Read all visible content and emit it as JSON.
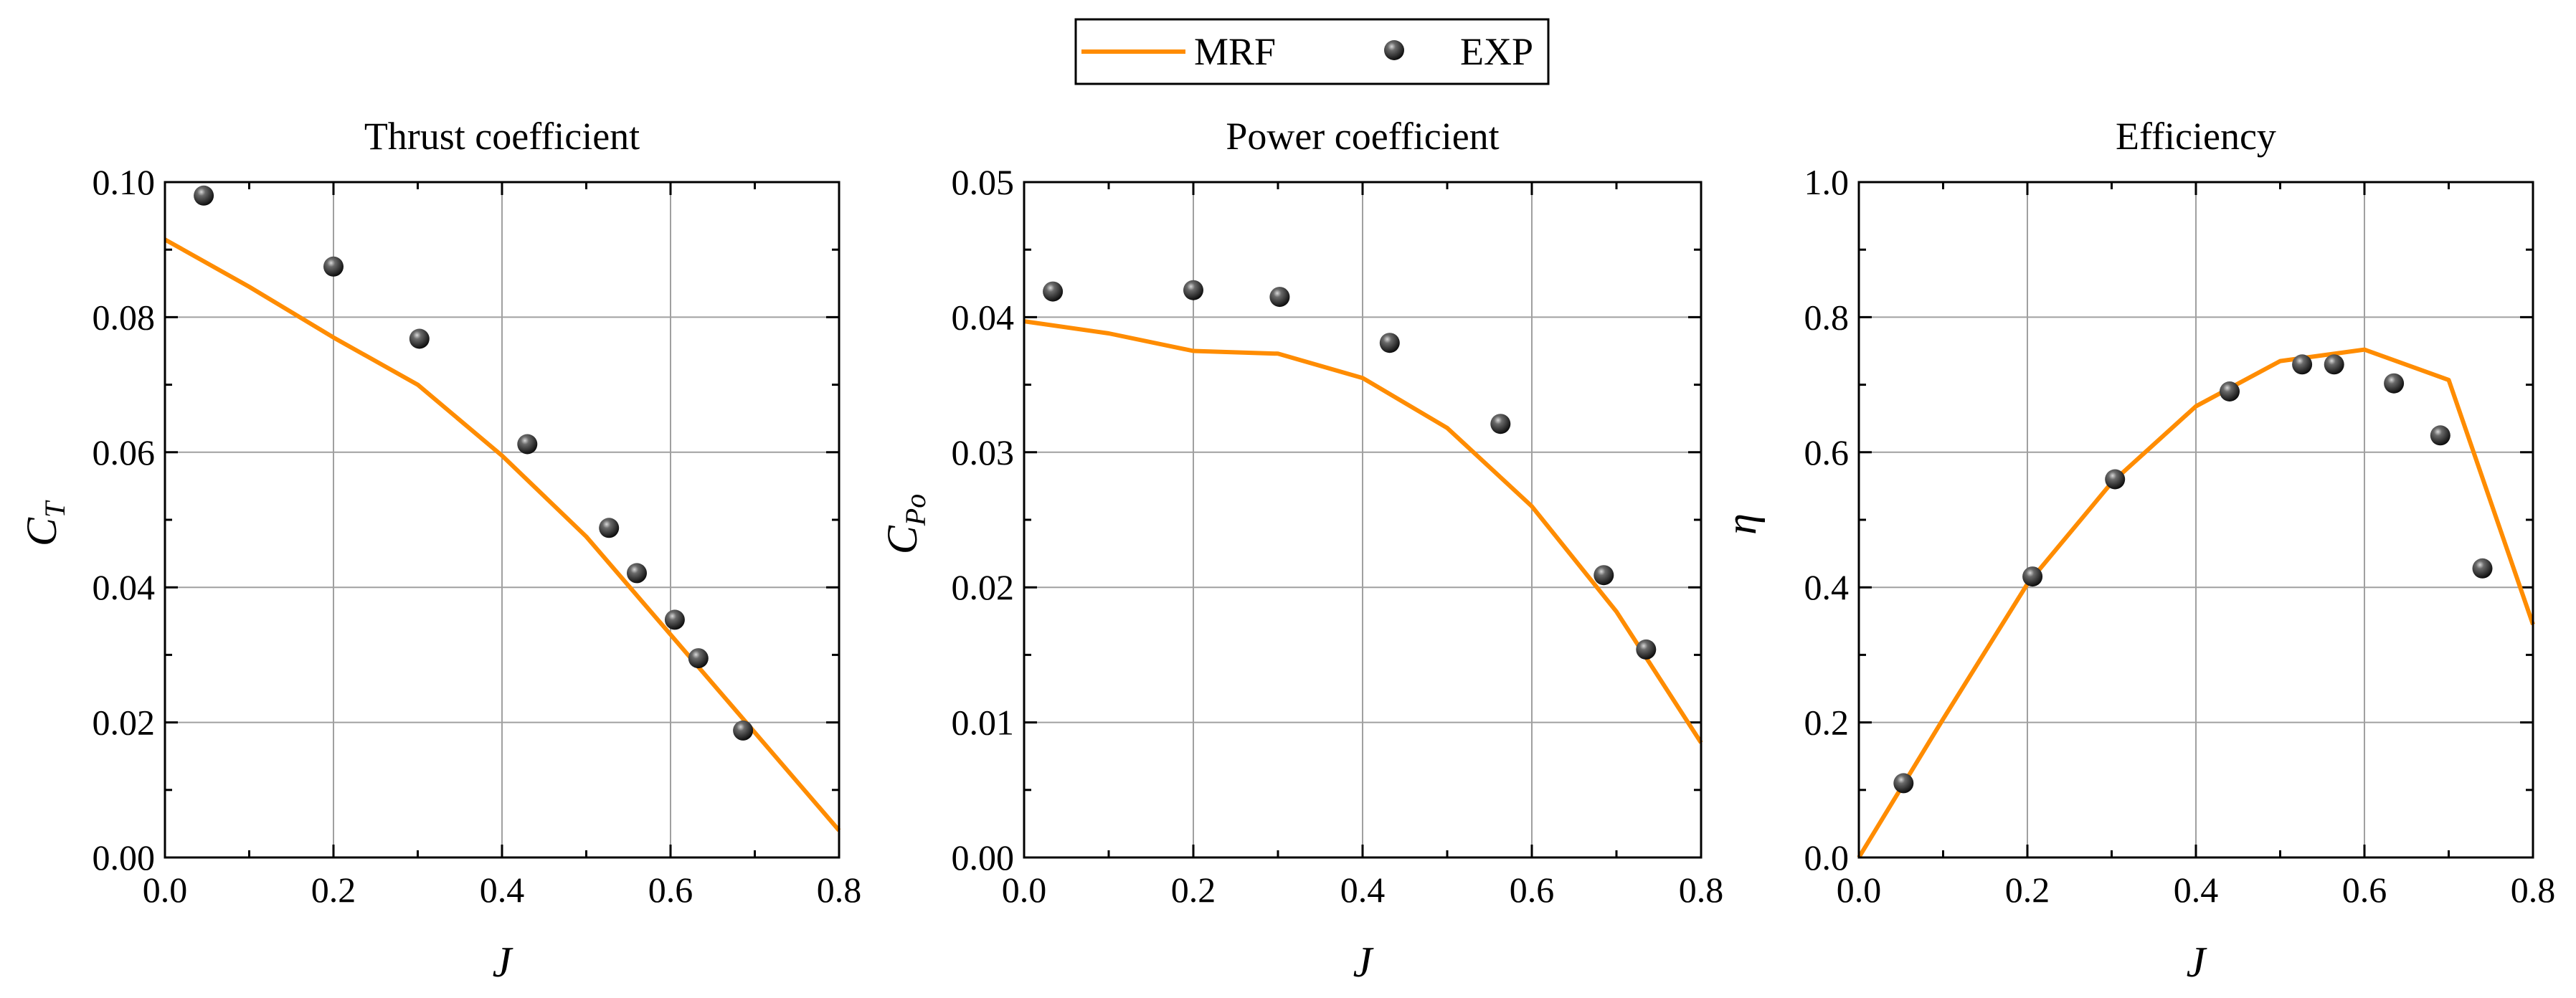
{
  "colors": {
    "mrf": "#ff8c00",
    "exp_fill": "#111111",
    "exp_highlight": "#bdbdbd",
    "grid": "#a0a0a0",
    "axis": "#000000"
  },
  "legend": {
    "mrf_label": "MRF",
    "exp_label": "EXP"
  },
  "chart_data": [
    {
      "type": "line",
      "title": "Thrust coefficient",
      "xlabel": "J",
      "ylabel_main": "C",
      "ylabel_sub": "T",
      "xlim": [
        0.0,
        0.8
      ],
      "ylim": [
        0.0,
        0.1
      ],
      "xticks": [
        "0.0",
        "0.2",
        "0.4",
        "0.6",
        "0.8"
      ],
      "yticks": [
        "0.00",
        "0.02",
        "0.04",
        "0.06",
        "0.08",
        "0.10"
      ],
      "grid": true,
      "series": [
        {
          "name": "MRF",
          "kind": "line",
          "points": [
            [
              0.0,
              0.0915
            ],
            [
              0.1,
              0.0845
            ],
            [
              0.2,
              0.077
            ],
            [
              0.3,
              0.07
            ],
            [
              0.4,
              0.0595
            ],
            [
              0.5,
              0.0475
            ],
            [
              0.6,
              0.033
            ],
            [
              0.7,
              0.0185
            ],
            [
              0.8,
              0.004
            ]
          ]
        },
        {
          "name": "EXP",
          "kind": "scatter",
          "points": [
            [
              0.046,
              0.098
            ],
            [
              0.2,
              0.0875
            ],
            [
              0.302,
              0.0768
            ],
            [
              0.43,
              0.0612
            ],
            [
              0.527,
              0.0488
            ],
            [
              0.56,
              0.0421
            ],
            [
              0.605,
              0.0352
            ],
            [
              0.633,
              0.0295
            ],
            [
              0.686,
              0.0188
            ]
          ]
        }
      ]
    },
    {
      "type": "line",
      "title": "Power coefficient",
      "xlabel": "J",
      "ylabel_main": "C",
      "ylabel_sub": "Po",
      "xlim": [
        0.0,
        0.8
      ],
      "ylim": [
        0.0,
        0.05
      ],
      "xticks": [
        "0.0",
        "0.2",
        "0.4",
        "0.6",
        "0.8"
      ],
      "yticks": [
        "0.00",
        "0.01",
        "0.02",
        "0.03",
        "0.04",
        "0.05"
      ],
      "grid": true,
      "series": [
        {
          "name": "MRF",
          "kind": "line",
          "points": [
            [
              0.0,
              0.0397
            ],
            [
              0.1,
              0.0388
            ],
            [
              0.2,
              0.0375
            ],
            [
              0.3,
              0.0373
            ],
            [
              0.4,
              0.0355
            ],
            [
              0.5,
              0.0318
            ],
            [
              0.6,
              0.026
            ],
            [
              0.7,
              0.0182
            ],
            [
              0.8,
              0.0085
            ]
          ]
        },
        {
          "name": "EXP",
          "kind": "scatter",
          "points": [
            [
              0.034,
              0.0419
            ],
            [
              0.2,
              0.042
            ],
            [
              0.302,
              0.0415
            ],
            [
              0.432,
              0.0381
            ],
            [
              0.563,
              0.0321
            ],
            [
              0.685,
              0.0209
            ],
            [
              0.735,
              0.0154
            ]
          ]
        }
      ]
    },
    {
      "type": "line",
      "title": "Efficiency",
      "xlabel": "J",
      "ylabel_main": "η",
      "ylabel_sub": "",
      "xlim": [
        0.0,
        0.8
      ],
      "ylim": [
        0.0,
        1.0
      ],
      "xticks": [
        "0.0",
        "0.2",
        "0.4",
        "0.6",
        "0.8"
      ],
      "yticks": [
        "0.0",
        "0.2",
        "0.4",
        "0.6",
        "0.8",
        "1.0"
      ],
      "grid": true,
      "series": [
        {
          "name": "MRF",
          "kind": "line",
          "points": [
            [
              0.0,
              0.0
            ],
            [
              0.1,
              0.205
            ],
            [
              0.2,
              0.405
            ],
            [
              0.3,
              0.555
            ],
            [
              0.4,
              0.668
            ],
            [
              0.5,
              0.735
            ],
            [
              0.6,
              0.752
            ],
            [
              0.7,
              0.707
            ],
            [
              0.8,
              0.345
            ]
          ]
        },
        {
          "name": "EXP",
          "kind": "scatter",
          "points": [
            [
              0.053,
              0.11
            ],
            [
              0.206,
              0.416
            ],
            [
              0.304,
              0.56
            ],
            [
              0.44,
              0.69
            ],
            [
              0.526,
              0.73
            ],
            [
              0.564,
              0.73
            ],
            [
              0.635,
              0.702
            ],
            [
              0.69,
              0.625
            ],
            [
              0.74,
              0.428
            ]
          ]
        }
      ]
    }
  ]
}
